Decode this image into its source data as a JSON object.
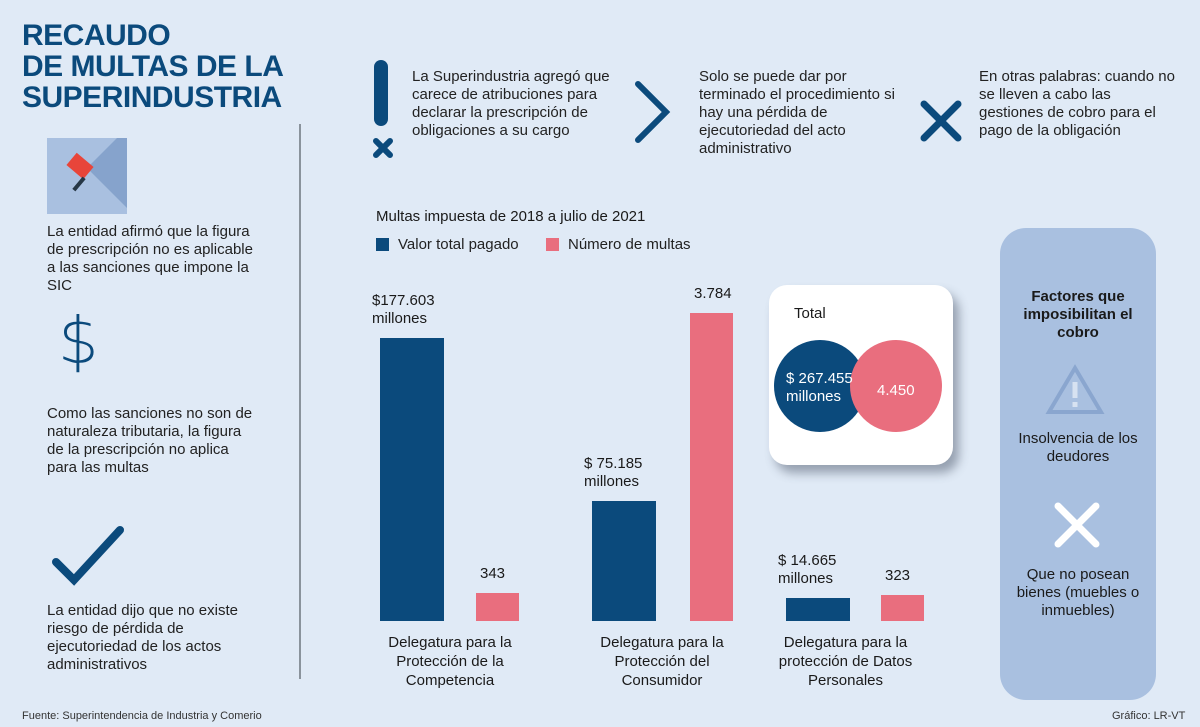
{
  "title": [
    "RECAUDO",
    "DE MULTAS DE LA",
    "SUPERINDUSTRIA"
  ],
  "left_items": [
    {
      "icon": "flag-icon",
      "text": "La entidad afirmó que la figura de prescripción no es aplicable a las sanciones que impone la SIC"
    },
    {
      "icon": "dollar-icon",
      "text": "Como las sanciones no son de naturaleza tributaria, la figura de la prescripción no aplica para las multas"
    },
    {
      "icon": "checkmark-icon",
      "text": "La entidad dijo que no existe riesgo de pérdida de ejecutoriedad de los actos administrativos"
    }
  ],
  "top_items": [
    {
      "icon": "exclamation-x-icon",
      "text": "La Superindustria agregó que carece de atribuciones para declarar la prescripción de obligaciones a su cargo"
    },
    {
      "icon": "chevron-right-icon",
      "text": "Solo se puede dar por terminado el procedimiento si hay una pérdida de ejecutoriedad del  acto administrativo"
    },
    {
      "icon": "x-icon",
      "text": "En otras palabras: cuando no se lleven a cabo las gestiones de cobro para el pago de la obligación"
    }
  ],
  "chart_data": {
    "type": "bar",
    "title": "Multas impuesta de 2018 a julio de 2021",
    "categories": [
      "Delegatura para la Protección de la Competencia",
      "Delegatura para la Protección del Consumidor",
      "Delegatura para la protección de Datos Personales"
    ],
    "series": [
      {
        "name": "Valor total pagado",
        "color": "#0b4a7c",
        "values": [
          177603,
          75185,
          14665
        ],
        "labels": [
          "$177.603 millones",
          "$ 75.185 millones",
          "$ 14.665 millones"
        ]
      },
      {
        "name": "Número de multas",
        "color": "#e96e7e",
        "values": [
          343,
          3784,
          323
        ],
        "labels": [
          "343",
          "3.784",
          "323"
        ]
      }
    ],
    "legend": "top-left",
    "grid": false
  },
  "total": {
    "label": "Total",
    "value": "$ 267.455 millones",
    "count": "4.450"
  },
  "factors": {
    "title": "Factores que imposibilitan el cobro",
    "items": [
      {
        "icon": "warning-icon",
        "text": "Insolvencia de los deudores"
      },
      {
        "icon": "x-icon",
        "text": "Que no posean bienes (muebles o inmuebles)"
      }
    ]
  },
  "footer": {
    "source": "Fuente: Superintendencia de Industria y Comerio",
    "credit": "Gráfico: LR-VT"
  }
}
